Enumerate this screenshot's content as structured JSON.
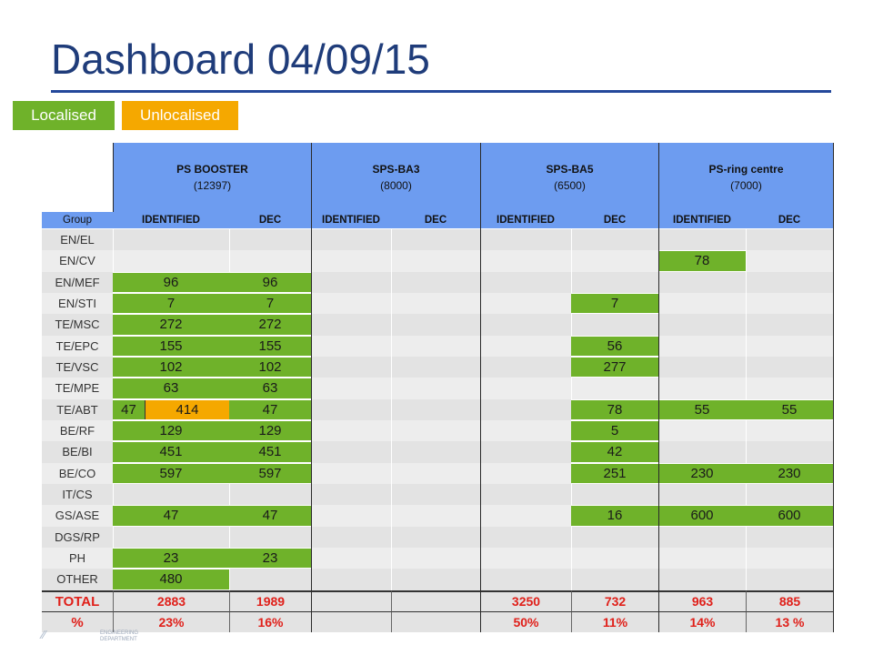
{
  "title": "Dashboard 04/09/15",
  "legend": {
    "localised": "Localised",
    "unlocalised": "Unlocalised"
  },
  "colors": {
    "localised": "#6fb22a",
    "unlocalised": "#f5a800",
    "header": "#6d9cf0",
    "total_text": "#e0201a",
    "title": "#1f3c7a"
  },
  "table": {
    "sections": [
      {
        "name": "PS BOOSTER",
        "code": "(12397)"
      },
      {
        "name": "SPS-BA3",
        "code": "(8000)"
      },
      {
        "name": "SPS-BA5",
        "code": "(6500)"
      },
      {
        "name": "PS-ring centre",
        "code": "(7000)"
      }
    ],
    "group_header": "Group",
    "col_headers": [
      "IDENTIFIED",
      "DEC",
      "IDENTIFIED",
      "DEC",
      "IDENTIFIED",
      "DEC",
      "IDENTIFIED",
      "DEC"
    ],
    "rows": [
      {
        "group": "EN/EL",
        "cells": [
          null,
          null,
          null,
          null,
          null,
          null,
          null,
          null
        ]
      },
      {
        "group": "EN/CV",
        "cells": [
          null,
          null,
          null,
          null,
          null,
          null,
          {
            "v": "78",
            "c": "green"
          },
          null
        ]
      },
      {
        "group": "EN/MEF",
        "cells": [
          {
            "v": "96",
            "c": "green"
          },
          {
            "v": "96",
            "c": "green"
          },
          null,
          null,
          null,
          null,
          null,
          null
        ]
      },
      {
        "group": "EN/STI",
        "cells": [
          {
            "v": "7",
            "c": "green"
          },
          {
            "v": "7",
            "c": "green"
          },
          null,
          null,
          null,
          {
            "v": "7",
            "c": "green"
          },
          null,
          null
        ]
      },
      {
        "group": "TE/MSC",
        "cells": [
          {
            "v": "272",
            "c": "green"
          },
          {
            "v": "272",
            "c": "green"
          },
          null,
          null,
          null,
          null,
          null,
          null
        ]
      },
      {
        "group": "TE/EPC",
        "cells": [
          {
            "v": "155",
            "c": "green"
          },
          {
            "v": "155",
            "c": "green"
          },
          null,
          null,
          null,
          {
            "v": "56",
            "c": "green"
          },
          null,
          null
        ]
      },
      {
        "group": "TE/VSC",
        "cells": [
          {
            "v": "102",
            "c": "green"
          },
          {
            "v": "102",
            "c": "green"
          },
          null,
          null,
          null,
          {
            "v": "277",
            "c": "green"
          },
          null,
          null
        ]
      },
      {
        "group": "TE/MPE",
        "cells": [
          {
            "v": "63",
            "c": "green"
          },
          {
            "v": "63",
            "c": "green"
          },
          null,
          null,
          null,
          null,
          null,
          null
        ]
      },
      {
        "group": "TE/ABT",
        "cells": [
          {
            "v": "47",
            "c": "green",
            "split": {
              "v": "414",
              "c": "orange"
            }
          },
          {
            "v": "47",
            "c": "green"
          },
          null,
          null,
          null,
          {
            "v": "78",
            "c": "green"
          },
          {
            "v": "55",
            "c": "green"
          },
          {
            "v": "55",
            "c": "green"
          }
        ]
      },
      {
        "group": "BE/RF",
        "cells": [
          {
            "v": "129",
            "c": "green"
          },
          {
            "v": "129",
            "c": "green"
          },
          null,
          null,
          null,
          {
            "v": "5",
            "c": "green"
          },
          null,
          null
        ]
      },
      {
        "group": "BE/BI",
        "cells": [
          {
            "v": "451",
            "c": "green"
          },
          {
            "v": "451",
            "c": "green"
          },
          null,
          null,
          null,
          {
            "v": "42",
            "c": "green"
          },
          null,
          null
        ]
      },
      {
        "group": "BE/CO",
        "cells": [
          {
            "v": "597",
            "c": "green"
          },
          {
            "v": "597",
            "c": "green"
          },
          null,
          null,
          null,
          {
            "v": "251",
            "c": "green"
          },
          {
            "v": "230",
            "c": "green"
          },
          {
            "v": "230",
            "c": "green"
          }
        ]
      },
      {
        "group": "IT/CS",
        "cells": [
          null,
          null,
          null,
          null,
          null,
          null,
          null,
          null
        ]
      },
      {
        "group": "GS/ASE",
        "cells": [
          {
            "v": "47",
            "c": "green"
          },
          {
            "v": "47",
            "c": "green"
          },
          null,
          null,
          null,
          {
            "v": "16",
            "c": "green"
          },
          {
            "v": "600",
            "c": "green"
          },
          {
            "v": "600",
            "c": "green"
          }
        ]
      },
      {
        "group": "DGS/RP",
        "cells": [
          null,
          null,
          null,
          null,
          null,
          null,
          null,
          null
        ]
      },
      {
        "group": "PH",
        "cells": [
          {
            "v": "23",
            "c": "green"
          },
          {
            "v": "23",
            "c": "green"
          },
          null,
          null,
          null,
          null,
          null,
          null
        ]
      },
      {
        "group": "OTHER",
        "cells": [
          {
            "v": "480",
            "c": "green"
          },
          null,
          null,
          null,
          null,
          null,
          null,
          null
        ]
      }
    ],
    "total": {
      "label": "TOTAL",
      "cells": [
        "2883",
        "1989",
        "",
        "",
        "3250",
        "732",
        "963",
        "885"
      ]
    },
    "percent": {
      "label": "%",
      "cells": [
        "23%",
        "16%",
        "",
        "",
        "50%",
        "11%",
        "14%",
        "13 %"
      ]
    }
  },
  "footer": {
    "dept_line1": "ENGINEERING",
    "dept_line2": "DEPARTMENT"
  }
}
